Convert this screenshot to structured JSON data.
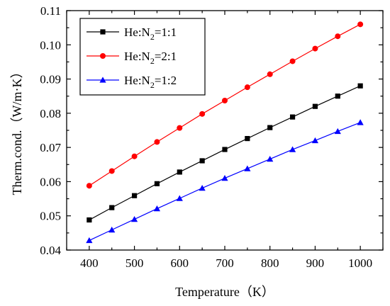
{
  "chart_data": {
    "type": "line",
    "title": "",
    "xlabel": "Temperature（K）",
    "ylabel": "Therm.cond.（W/m·K）",
    "xlim": [
      350,
      1050
    ],
    "ylim": [
      0.04,
      0.11
    ],
    "xticks": [
      400,
      500,
      600,
      700,
      800,
      900,
      1000
    ],
    "yticks": [
      0.04,
      0.05,
      0.06,
      0.07,
      0.08,
      0.09,
      0.1,
      0.11
    ],
    "x": [
      400,
      450,
      500,
      550,
      600,
      650,
      700,
      750,
      800,
      850,
      900,
      950,
      1000
    ],
    "legend_position": "top-left",
    "grid": false,
    "series": [
      {
        "name": "He:N2=1:1",
        "label_main": "He:N",
        "label_sub": "2",
        "label_tail": "=1:1",
        "color": "#000000",
        "marker": "square",
        "values": [
          0.0488,
          0.0524,
          0.0559,
          0.0594,
          0.0628,
          0.0661,
          0.0694,
          0.0726,
          0.0758,
          0.0789,
          0.082,
          0.085,
          0.088
        ]
      },
      {
        "name": "He:N2=2:1",
        "label_main": "He:N",
        "label_sub": "2",
        "label_tail": "=2:1",
        "color": "#ff0000",
        "marker": "circle",
        "values": [
          0.0588,
          0.0631,
          0.0674,
          0.0716,
          0.0757,
          0.0798,
          0.0837,
          0.0876,
          0.0914,
          0.0952,
          0.0989,
          0.1025,
          0.106
        ]
      },
      {
        "name": "He:N2=1:2",
        "label_main": "He:N",
        "label_sub": "2",
        "label_tail": "=1:2",
        "color": "#0000ff",
        "marker": "triangle",
        "values": [
          0.0428,
          0.0459,
          0.049,
          0.0521,
          0.0551,
          0.0581,
          0.061,
          0.0638,
          0.0666,
          0.0694,
          0.072,
          0.0747,
          0.0773
        ]
      }
    ]
  }
}
